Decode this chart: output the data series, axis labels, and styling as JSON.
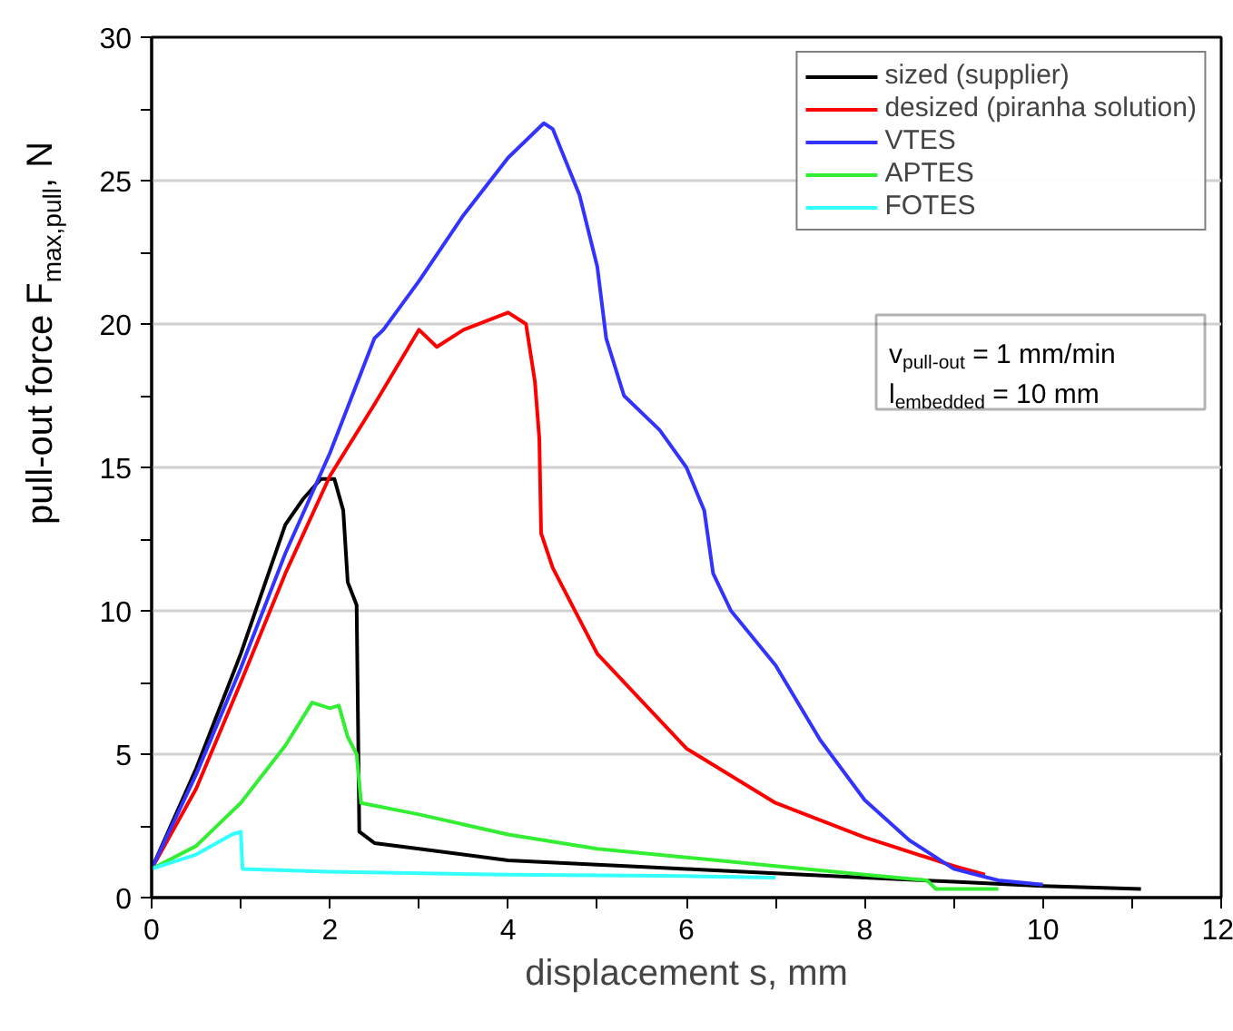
{
  "chart_data": {
    "type": "line",
    "xlabel": "displacement s, mm",
    "ylabel": "pull-out force F$_{max,pull}$, N",
    "xlim": [
      0,
      12
    ],
    "ylim": [
      0,
      30
    ],
    "xticks": [
      0,
      {
        "value": 1,
        "label": null
      },
      2,
      {
        "value": 3,
        "label": null
      },
      4,
      {
        "value": 5,
        "label": null
      },
      6,
      {
        "value": 7,
        "label": null
      },
      8,
      {
        "value": 9,
        "label": null
      },
      10,
      {
        "value": 11,
        "label": null
      },
      12
    ],
    "yticks": [
      0,
      {
        "value": 2.5,
        "label": null
      },
      5,
      {
        "value": 7.5,
        "label": null
      },
      10,
      {
        "value": 12.5,
        "label": null
      },
      15,
      {
        "value": 17.5,
        "label": null
      },
      20,
      {
        "value": 22.5,
        "label": null
      },
      25,
      {
        "value": 27.5,
        "label": null
      },
      30
    ],
    "grid": "y",
    "legend": "top right",
    "line_style": "solid",
    "marker": "none",
    "annotations": [
      {
        "text": "v$_{pull-out}$ = 1 mm/min"
      },
      {
        "text": "l$_{embedded}$ = 10 mm"
      }
    ],
    "series": [
      {
        "name": "sized (supplier)",
        "color": "#000000",
        "x": [
          0,
          0.5,
          1,
          1.5,
          1.7,
          1.9,
          2.05,
          2.15,
          2.2,
          2.3,
          2.32,
          2.33,
          2.5,
          3,
          4,
          5,
          6,
          7,
          8,
          9,
          10,
          11.1
        ],
        "values": [
          1,
          4.5,
          8.5,
          13,
          13.9,
          14.6,
          14.6,
          13.5,
          11,
          10.2,
          5,
          2.3,
          1.9,
          1.7,
          1.3,
          1.15,
          1.0,
          0.85,
          0.7,
          0.55,
          0.4,
          0.3
        ]
      },
      {
        "name": "desized (piranha solution)",
        "color": "#ff0000",
        "x": [
          0,
          0.5,
          1,
          1.5,
          2,
          2.5,
          3,
          3.2,
          3.5,
          4,
          4.2,
          4.3,
          4.35,
          4.37,
          4.5,
          5,
          6,
          7,
          8,
          9,
          9.35
        ],
        "values": [
          1,
          3.8,
          7.5,
          11.3,
          14.7,
          17.2,
          19.8,
          19.2,
          19.8,
          20.4,
          20,
          18,
          16,
          12.7,
          11.5,
          8.5,
          5.2,
          3.3,
          2.1,
          1.1,
          0.8
        ]
      },
      {
        "name": "VTES",
        "color": "#3333ff",
        "x": [
          0,
          0.5,
          1,
          1.5,
          2,
          2.5,
          2.6,
          3,
          3.5,
          4,
          4.4,
          4.5,
          4.8,
          5,
          5.1,
          5.3,
          5.7,
          6,
          6.2,
          6.3,
          6.5,
          7,
          7.5,
          8,
          8.5,
          9,
          9.5,
          10
        ],
        "values": [
          1,
          4.3,
          8,
          12,
          15.5,
          19.5,
          19.8,
          21.5,
          23.8,
          25.8,
          27,
          26.8,
          24.5,
          22,
          19.5,
          17.5,
          16.3,
          15,
          13.5,
          11.3,
          10,
          8.1,
          5.5,
          3.4,
          2.0,
          1.0,
          0.6,
          0.45
        ]
      },
      {
        "name": "APTES",
        "color": "#33ee33",
        "x": [
          0,
          0.5,
          1,
          1.5,
          1.8,
          2,
          2.1,
          2.2,
          2.3,
          2.35,
          3,
          4,
          5,
          6,
          7,
          8,
          8.7,
          8.8,
          9.5
        ],
        "values": [
          1,
          1.8,
          3.3,
          5.3,
          6.8,
          6.6,
          6.7,
          5.6,
          5,
          3.3,
          2.9,
          2.2,
          1.7,
          1.4,
          1.1,
          0.8,
          0.6,
          0.3,
          0.3
        ]
      },
      {
        "name": "FOTES",
        "color": "#33ffff",
        "x": [
          0,
          0.5,
          0.9,
          1,
          1.02,
          2,
          4,
          6,
          7
        ],
        "values": [
          1,
          1.5,
          2.2,
          2.3,
          1,
          0.9,
          0.8,
          0.75,
          0.7
        ]
      }
    ]
  }
}
